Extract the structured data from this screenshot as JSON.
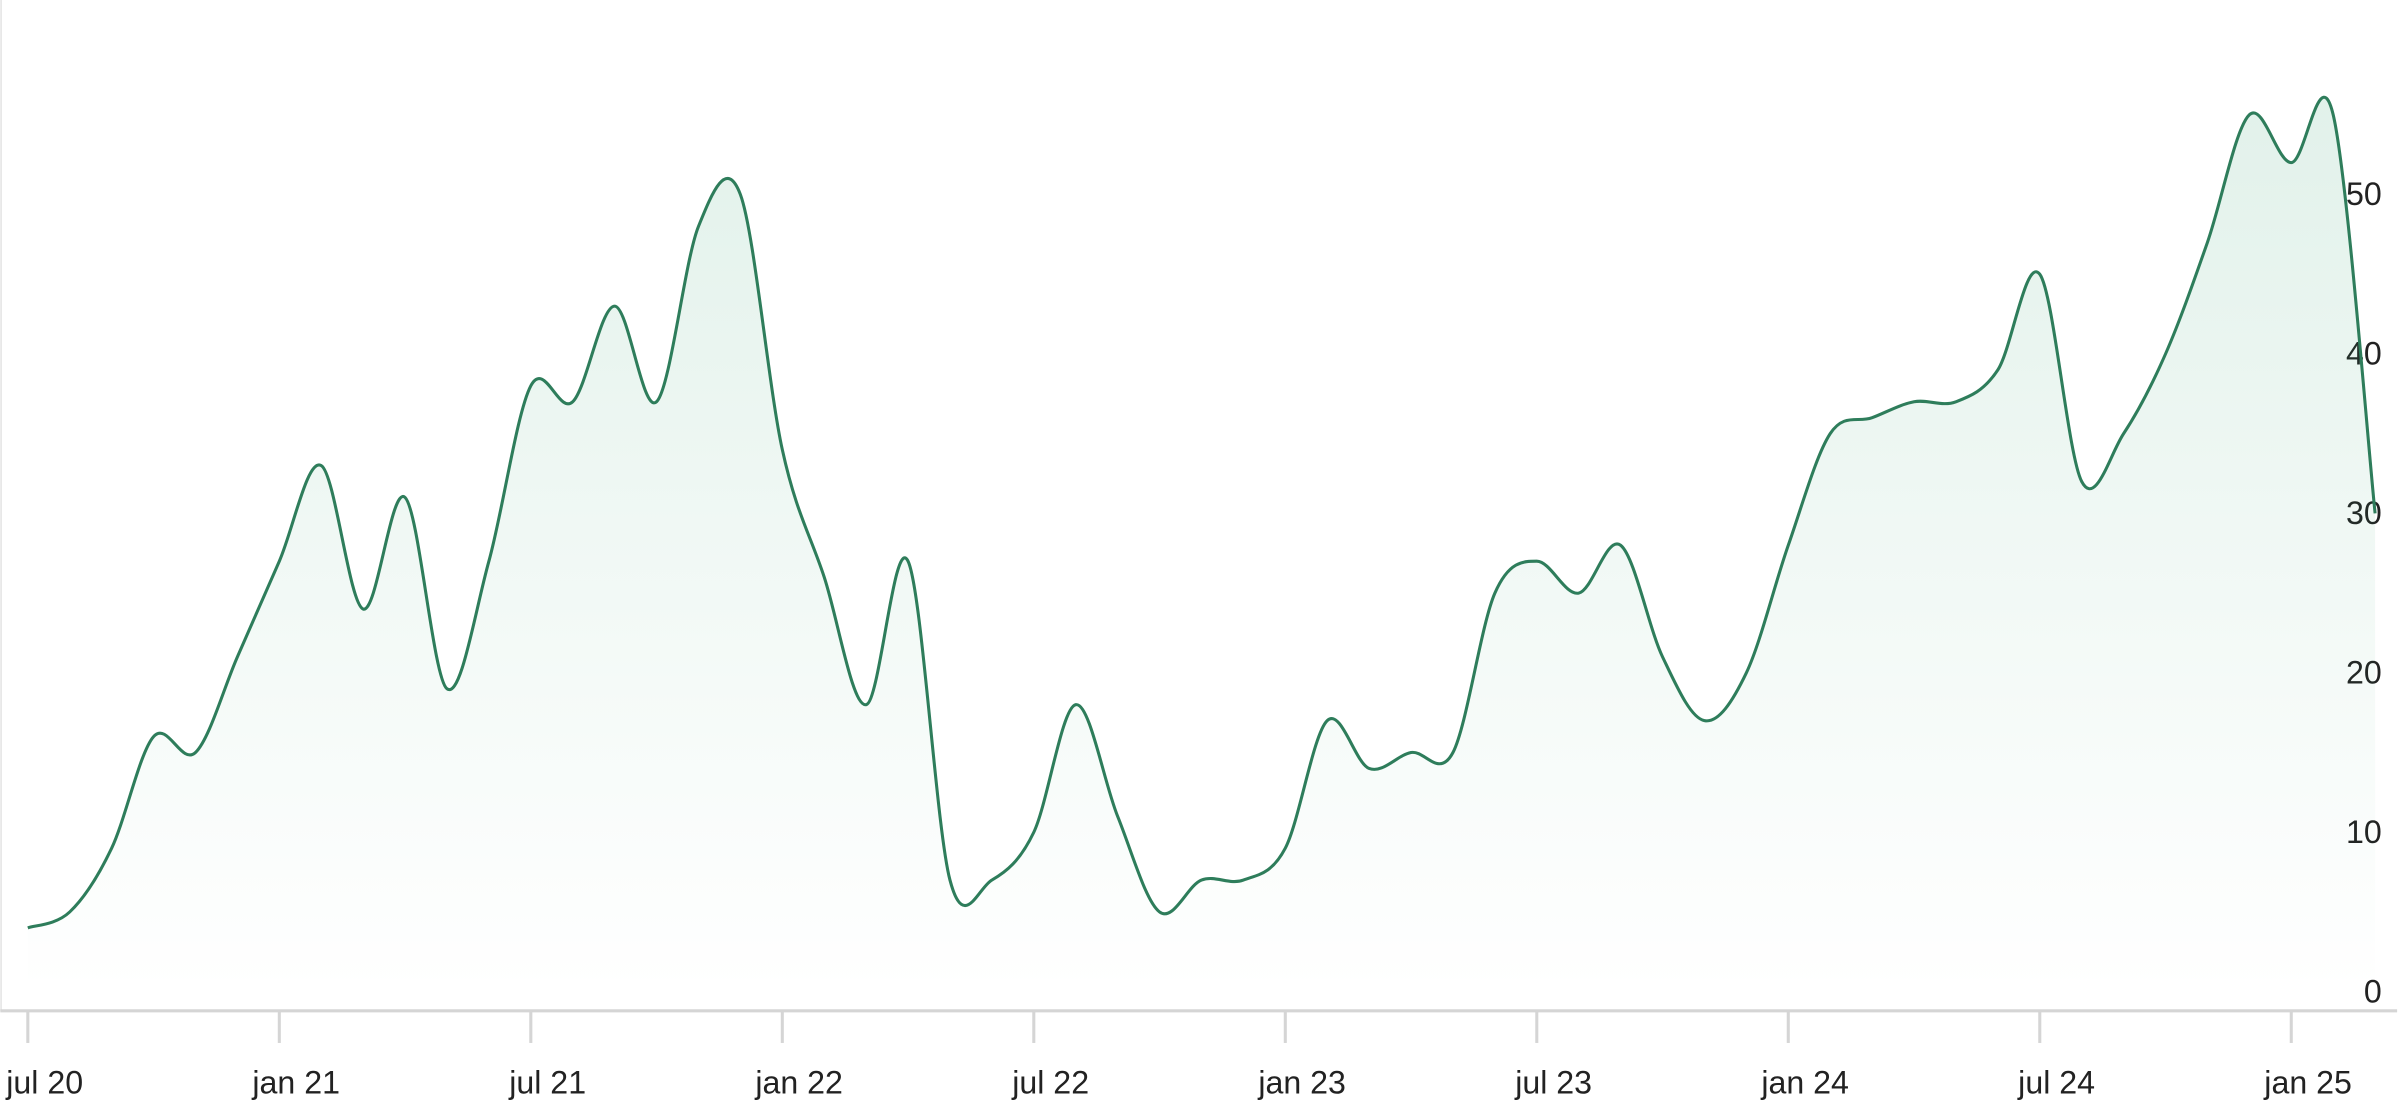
{
  "chart_data": {
    "type": "line",
    "x": [
      "2020-07",
      "2020-08",
      "2020-09",
      "2020-10",
      "2020-11",
      "2020-12",
      "2021-01",
      "2021-02",
      "2021-03",
      "2021-04",
      "2021-05",
      "2021-06",
      "2021-07",
      "2021-08",
      "2021-09",
      "2021-10",
      "2021-11",
      "2021-12",
      "2022-01",
      "2022-02",
      "2022-03",
      "2022-04",
      "2022-05",
      "2022-06",
      "2022-07",
      "2022-08",
      "2022-09",
      "2022-10",
      "2022-11",
      "2022-12",
      "2023-01",
      "2023-02",
      "2023-03",
      "2023-04",
      "2023-05",
      "2023-06",
      "2023-07",
      "2023-08",
      "2023-09",
      "2023-10",
      "2023-11",
      "2023-12",
      "2024-01",
      "2024-02",
      "2024-03",
      "2024-04",
      "2024-05",
      "2024-06",
      "2024-07",
      "2024-08",
      "2024-09",
      "2024-10",
      "2024-11",
      "2024-12",
      "2025-01",
      "2025-02",
      "2025-03"
    ],
    "series": [
      {
        "color": "#2e7d5b",
        "values": [
          4,
          5,
          9,
          16,
          15,
          21,
          27,
          33,
          24,
          31,
          19,
          27,
          38,
          37,
          43,
          37,
          48,
          50,
          34,
          26,
          18,
          27,
          7,
          7,
          10,
          18,
          11,
          5,
          7,
          7,
          9,
          17,
          14,
          15,
          15,
          25,
          27,
          25,
          28,
          21,
          17,
          20,
          28,
          35,
          36,
          37,
          37,
          39,
          45,
          32,
          35,
          40,
          47,
          55,
          52,
          55,
          30
        ]
      }
    ],
    "xlim": [
      "2020-06",
      "2025-04"
    ],
    "xticks": [
      {
        "value": "2020-07",
        "label": "jul 20"
      },
      {
        "value": "2021-01",
        "label": "jan 21"
      },
      {
        "value": "2021-07",
        "label": "jul 21"
      },
      {
        "value": "2022-01",
        "label": "jan 22"
      },
      {
        "value": "2022-07",
        "label": "jul 22"
      },
      {
        "value": "2023-01",
        "label": "jan 23"
      },
      {
        "value": "2023-07",
        "label": "jul 23"
      },
      {
        "value": "2024-01",
        "label": "jan 24"
      },
      {
        "value": "2024-07",
        "label": "jul 24"
      },
      {
        "value": "2025-01",
        "label": "jan 25"
      }
    ],
    "ylim": [
      -1.2,
      62.2
    ],
    "yticks": [
      0,
      10,
      20,
      30,
      40,
      50
    ],
    "grid": false
  }
}
